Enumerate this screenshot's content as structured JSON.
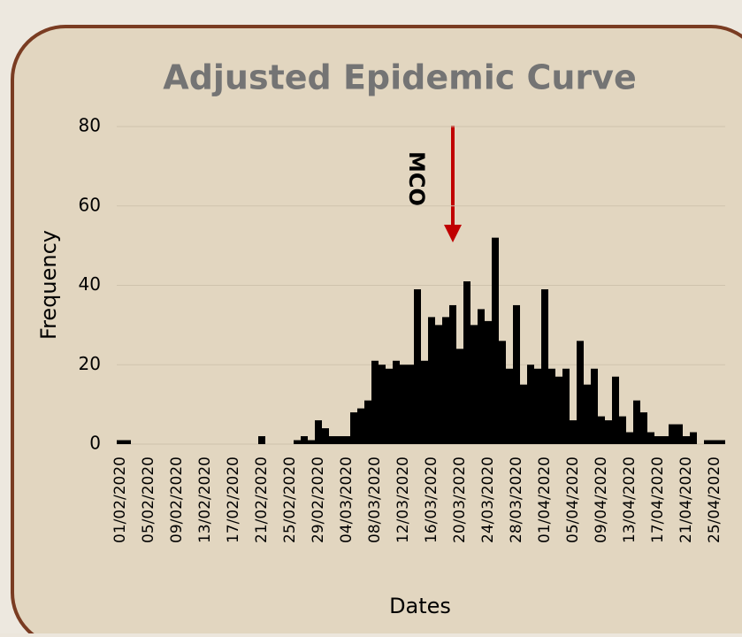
{
  "chart_data": {
    "type": "bar",
    "title": "Adjusted Epidemic Curve",
    "x_label": "Dates",
    "y_label": "Frequency",
    "annotation": "MCO",
    "categories": [
      "01/02/2020",
      null,
      null,
      null,
      "05/02/2020",
      null,
      null,
      null,
      "09/02/2020",
      null,
      null,
      null,
      "13/02/2020",
      null,
      null,
      null,
      "17/02/2020",
      null,
      null,
      null,
      "21/02/2020",
      null,
      null,
      null,
      "25/02/2020",
      null,
      null,
      null,
      "29/02/2020",
      null,
      null,
      null,
      "04/03/2020",
      null,
      null,
      null,
      "08/03/2020",
      null,
      null,
      null,
      "12/03/2020",
      null,
      null,
      null,
      "16/03/2020",
      null,
      null,
      null,
      "20/03/2020",
      null,
      null,
      null,
      "24/03/2020",
      null,
      null,
      null,
      "28/03/2020",
      null,
      null,
      null,
      "01/04/2020",
      null,
      null,
      null,
      "05/04/2020",
      null,
      null,
      null,
      "09/04/2020",
      null,
      null,
      null,
      "13/04/2020",
      null,
      null,
      null,
      "17/04/2020",
      null,
      null,
      null,
      "21/04/2020",
      null,
      null,
      null,
      "25/04/2020",
      null
    ],
    "values": [
      1,
      1,
      0,
      0,
      0,
      0,
      0,
      0,
      0,
      0,
      0,
      0,
      0,
      0,
      0,
      0,
      0,
      0,
      0,
      0,
      2,
      0,
      0,
      0,
      0,
      1,
      2,
      1,
      6,
      4,
      2,
      2,
      2,
      8,
      9,
      11,
      21,
      20,
      19,
      21,
      20,
      20,
      39,
      21,
      32,
      30,
      32,
      35,
      24,
      41,
      30,
      34,
      31,
      52,
      26,
      19,
      35,
      15,
      20,
      19,
      39,
      19,
      17,
      19,
      6,
      26,
      15,
      19,
      7,
      6,
      17,
      7,
      3,
      11,
      8,
      3,
      2,
      2,
      5,
      5,
      2,
      3,
      0,
      1,
      1,
      1
    ],
    "color": "#000000",
    "ylim": [
      0,
      80
    ],
    "yticks": [
      0,
      20,
      40,
      60,
      80
    ],
    "grid": true
  }
}
